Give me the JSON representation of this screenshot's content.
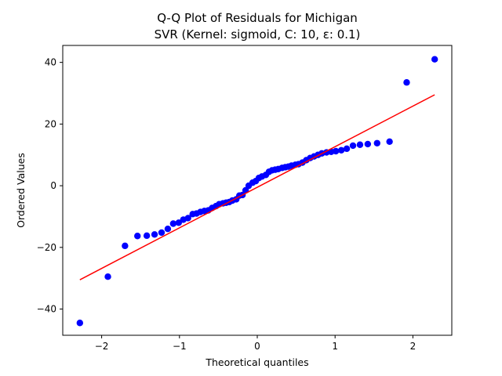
{
  "chart_data": {
    "type": "scatter",
    "title": "Q-Q Plot of Residuals for Michigan",
    "subtitle": "SVR (Kernel: sigmoid, C: 10, ε: 0.1)",
    "xlabel": "Theoretical quantiles",
    "ylabel": "Ordered Values",
    "xlim": [
      -2.5,
      2.5
    ],
    "ylim": [
      -48.5,
      45.5
    ],
    "xticks": [
      -2,
      -1,
      0,
      1,
      2
    ],
    "xtick_labels": [
      "−2",
      "−1",
      "0",
      "1",
      "2"
    ],
    "yticks": [
      -40,
      -20,
      0,
      20,
      40
    ],
    "ytick_labels": [
      "−40",
      "−20",
      "0",
      "20",
      "40"
    ],
    "grid": false,
    "series": [
      {
        "kind": "points",
        "color": "#0000ff",
        "x": [
          -2.28,
          -1.92,
          -1.7,
          -1.54,
          -1.42,
          -1.32,
          -1.23,
          -1.15,
          -1.08,
          -1.01,
          -0.95,
          -0.89,
          -0.83,
          -0.78,
          -0.73,
          -0.68,
          -0.63,
          -0.58,
          -0.53,
          -0.49,
          -0.44,
          -0.4,
          -0.36,
          -0.32,
          -0.27,
          -0.23,
          -0.19,
          -0.15,
          -0.11,
          -0.06,
          -0.02,
          0.02,
          0.06,
          0.11,
          0.15,
          0.19,
          0.23,
          0.27,
          0.32,
          0.36,
          0.4,
          0.44,
          0.49,
          0.53,
          0.58,
          0.63,
          0.68,
          0.73,
          0.78,
          0.83,
          0.89,
          0.95,
          1.01,
          1.08,
          1.15,
          1.23,
          1.32,
          1.42,
          1.54,
          1.7,
          1.92,
          2.28
        ],
        "y": [
          -44.5,
          -29.5,
          -19.5,
          -16.3,
          -16.2,
          -15.8,
          -15.2,
          -14.0,
          -12.3,
          -12.0,
          -11.0,
          -10.5,
          -9.2,
          -9.0,
          -8.5,
          -8.2,
          -8.0,
          -7.2,
          -6.6,
          -6.0,
          -5.7,
          -5.5,
          -5.3,
          -4.8,
          -4.4,
          -3.2,
          -3.0,
          -1.5,
          0.0,
          1.0,
          1.5,
          2.5,
          3.0,
          3.5,
          4.5,
          5.0,
          5.2,
          5.4,
          5.8,
          6.0,
          6.2,
          6.5,
          6.8,
          7.0,
          7.5,
          8.3,
          9.0,
          9.5,
          10.0,
          10.5,
          10.8,
          11.0,
          11.2,
          11.5,
          12.0,
          13.0,
          13.3,
          13.5,
          13.8,
          14.3,
          33.5,
          41.0
        ]
      },
      {
        "kind": "fit-line",
        "color": "#ff0000",
        "x": [
          -2.28,
          2.28
        ],
        "y": [
          -30.5,
          29.5
        ]
      }
    ]
  }
}
